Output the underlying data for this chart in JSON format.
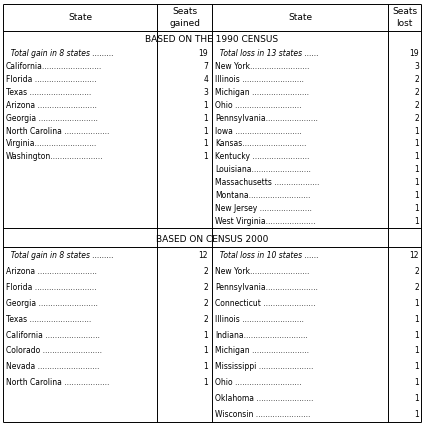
{
  "header_cols": [
    "State",
    "Seats\ngained",
    "State",
    "Seats\nlost"
  ],
  "section1_title": "BASED ON THE 1990 CENSUS",
  "section2_title": "BASED ON CENSUS 2000",
  "census1990": {
    "gain_states": [
      "  Total gain in 8 states .........",
      "California.........................",
      "Florida ..........................",
      "Texas ..........................",
      "Arizona .........................",
      "Georgia .........................",
      "North Carolina ...................",
      "Virginia..........................",
      "Washington......................"
    ],
    "gain_values": [
      "19",
      "7",
      "4",
      "3",
      "1",
      "1",
      "1",
      "1",
      "1"
    ],
    "loss_states": [
      "  Total loss in 13 states ......",
      "New York.........................",
      "Illinois ..........................",
      "Michigan ........................",
      "Ohio ............................",
      "Pennsylvania......................",
      "Iowa ............................",
      "Kansas...........................",
      "Kentucky ........................",
      "Louisiana.........................",
      "Massachusetts ...................",
      "Montana..........................",
      "New Jersey ......................",
      "West Virginia....................."
    ],
    "loss_values": [
      "19",
      "3",
      "2",
      "2",
      "2",
      "2",
      "1",
      "1",
      "1",
      "1",
      "1",
      "1",
      "1",
      "1"
    ]
  },
  "census2000": {
    "gain_states": [
      "  Total gain in 8 states .........",
      "Arizona .........................",
      "Florida ..........................",
      "Georgia .........................",
      "Texas ..........................",
      "California .......................",
      "Colorado .........................",
      "Nevada ..........................",
      "North Carolina ..................."
    ],
    "gain_values": [
      "12",
      "2",
      "2",
      "2",
      "2",
      "1",
      "1",
      "1",
      "1"
    ],
    "loss_states": [
      "  Total loss in 10 states ......",
      "New York.........................",
      "Pennsylvania......................",
      "Connecticut ......................",
      "Illinois ..........................",
      "Indiana...........................",
      "Michigan ........................",
      "Mississippi .......................",
      "Ohio ............................",
      "Oklahoma ........................",
      "Wisconsin ......................."
    ],
    "loss_values": [
      "12",
      "2",
      "2",
      "1",
      "1",
      "1",
      "1",
      "1",
      "1",
      "1",
      "1"
    ]
  },
  "bg_color": "#ffffff",
  "text_color": "#000000",
  "line_color": "#000000"
}
